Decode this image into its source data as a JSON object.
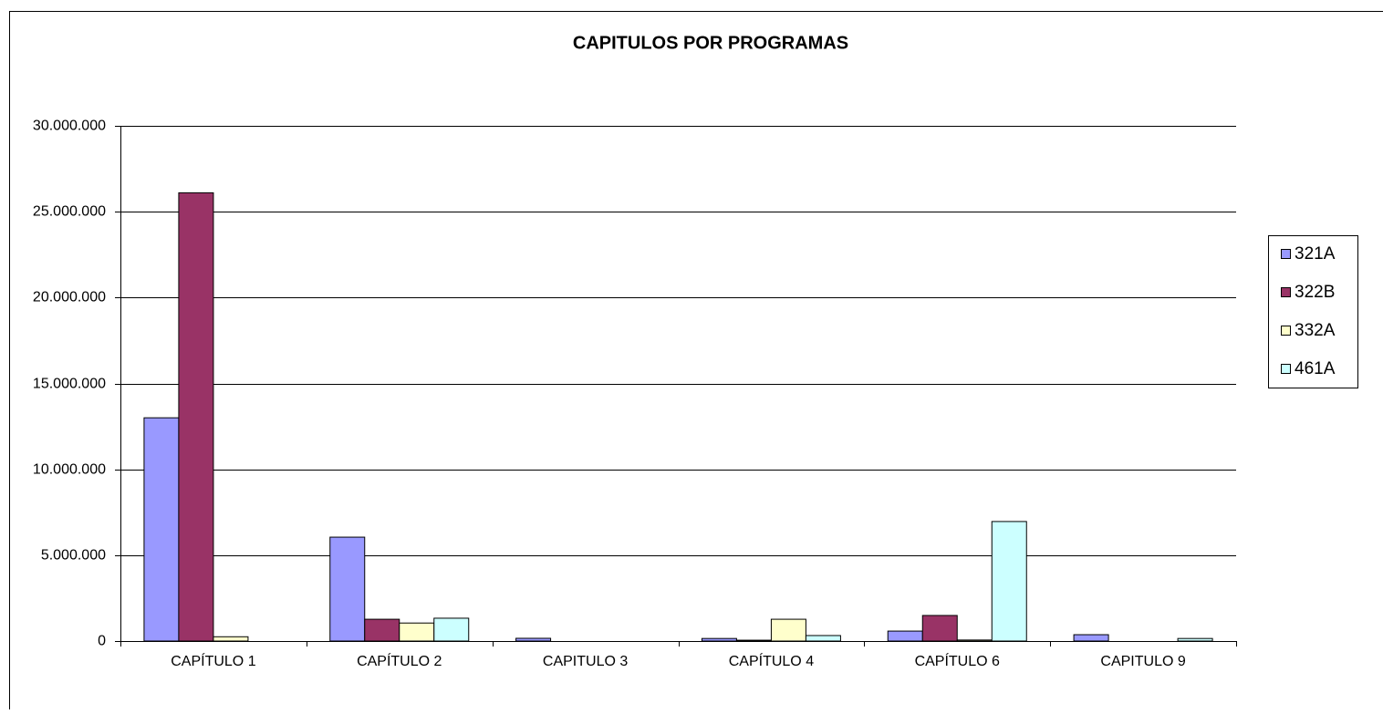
{
  "chart_data": {
    "type": "bar",
    "title": "CAPITULOS POR PROGRAMAS",
    "categories": [
      "CAPÍTULO 1",
      "CAPÍTULO 2",
      "CAPITULO 3",
      "CAPÍTULO 4",
      "CAPÍTULO 6",
      "CAPITULO 9"
    ],
    "series": [
      {
        "name": "321A",
        "color": "#9999ff",
        "values": [
          13000000,
          6050000,
          160000,
          150000,
          580000,
          370000
        ]
      },
      {
        "name": "322B",
        "color": "#993366",
        "values": [
          26100000,
          1270000,
          0,
          50000,
          1490000,
          0
        ]
      },
      {
        "name": "332A",
        "color": "#ffffcc",
        "values": [
          250000,
          1050000,
          0,
          1270000,
          60000,
          0
        ]
      },
      {
        "name": "461A",
        "color": "#ccffff",
        "values": [
          0,
          1330000,
          0,
          320000,
          6960000,
          150000
        ]
      }
    ],
    "ylim": [
      0,
      30000000
    ],
    "yticks": [
      0,
      {
        "value": 5000000,
        "label": "5.000.000"
      },
      {
        "value": 10000000,
        "label": "10.000.000"
      },
      {
        "value": 15000000,
        "label": "15.000.000"
      },
      {
        "value": 20000000,
        "label": "20.000.000"
      },
      {
        "value": 25000000,
        "label": "25.000.000"
      },
      {
        "value": 30000000,
        "label": "30.000.000"
      }
    ],
    "grid": true,
    "legend": "right"
  }
}
